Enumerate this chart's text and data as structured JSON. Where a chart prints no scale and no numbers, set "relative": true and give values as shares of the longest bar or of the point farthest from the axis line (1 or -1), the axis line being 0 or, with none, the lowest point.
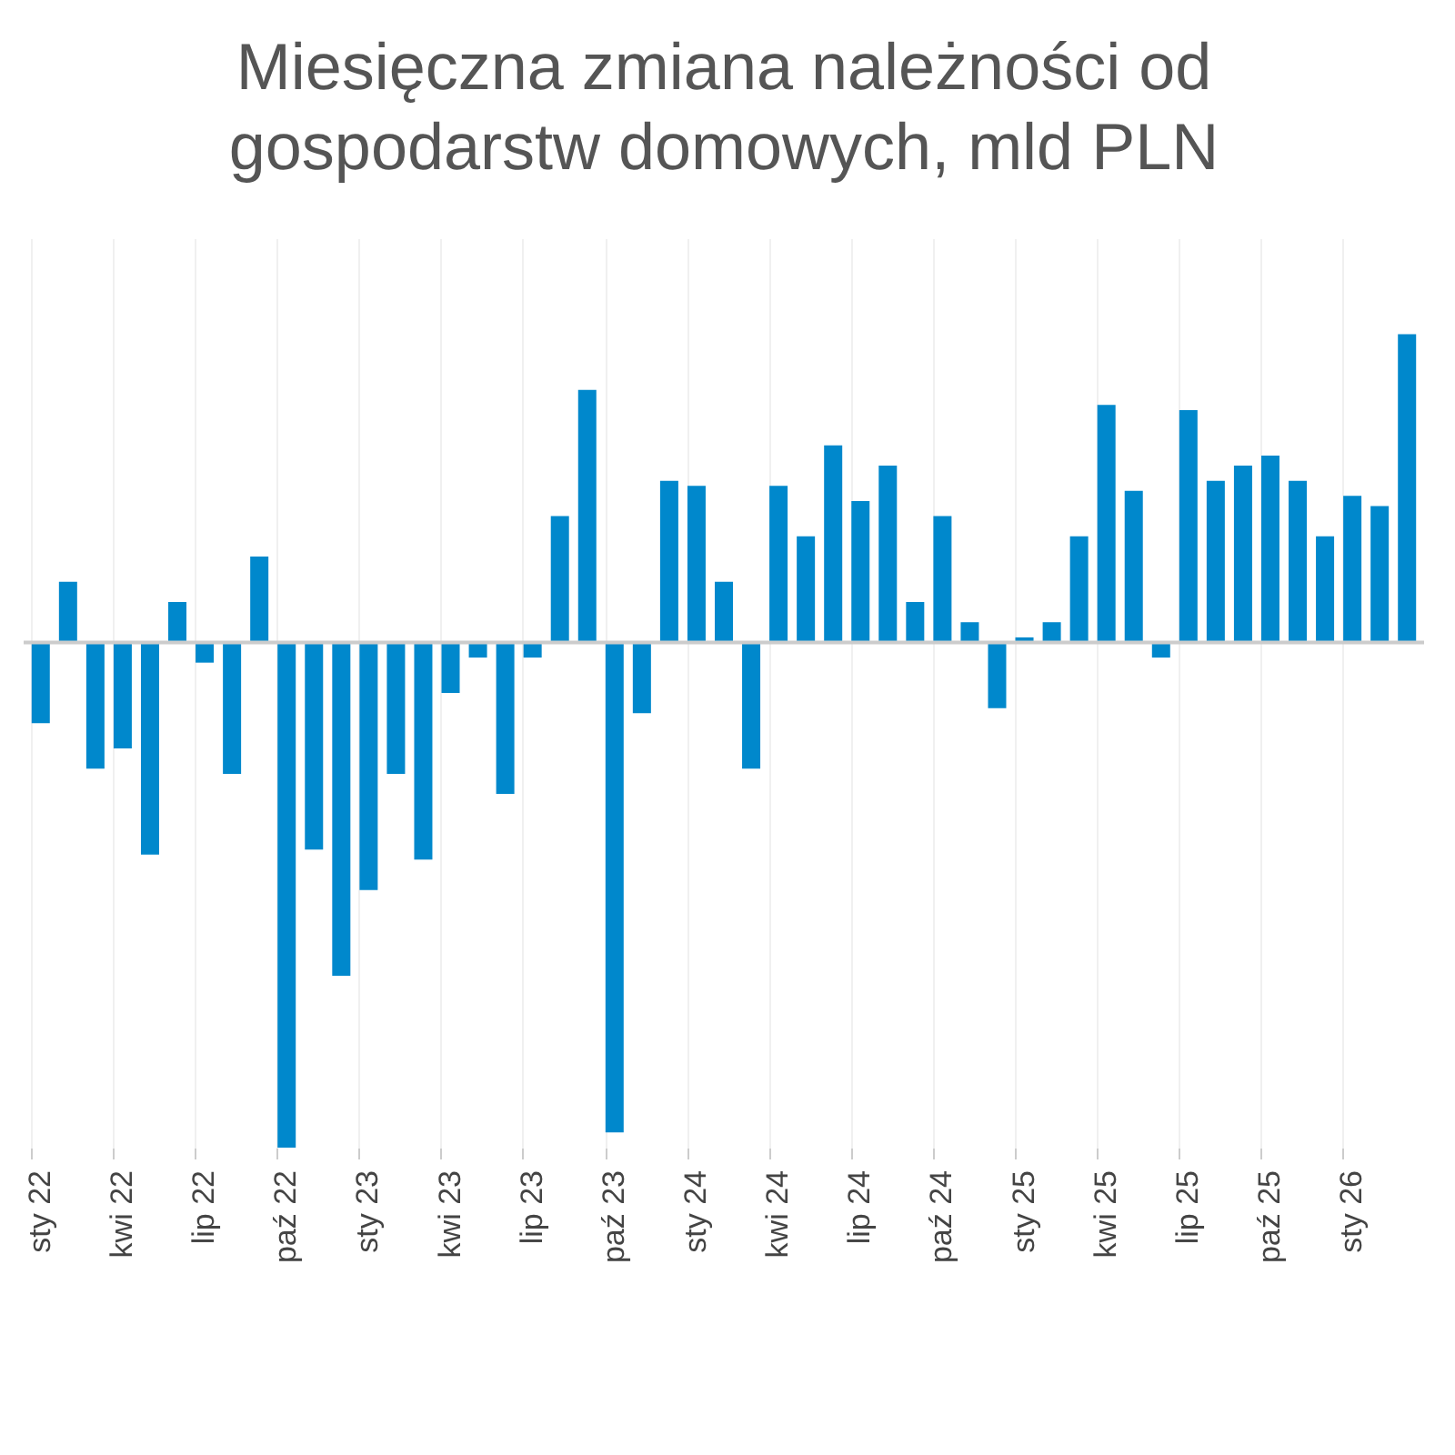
{
  "chart_data": {
    "type": "bar",
    "title": "Miesięczna zmiana należności od gospodarstw domowych, mld PLN",
    "relative": true,
    "grid": true,
    "color": "#0088cc",
    "categories": [
      "sty 22",
      null,
      null,
      "kwi 22",
      null,
      null,
      "lip 22",
      null,
      null,
      "paź 22",
      null,
      null,
      "sty 23",
      null,
      null,
      "kwi 23",
      null,
      null,
      "lip 23",
      null,
      null,
      "paź 23",
      null,
      null,
      "sty 24",
      null,
      null,
      "kwi 24",
      null,
      null,
      "lip 24",
      null,
      null,
      "paź 24",
      null,
      null,
      "sty 25",
      null,
      null,
      "kwi 25",
      null,
      null,
      "lip 25",
      null,
      null,
      "paź 25",
      null,
      null,
      "sty 26",
      null,
      null
    ],
    "values": [
      -0.16,
      0.12,
      -0.25,
      -0.21,
      -0.42,
      0.08,
      -0.04,
      -0.26,
      0.17,
      -1,
      -0.41,
      -0.66,
      -0.49,
      -0.26,
      -0.43,
      -0.1,
      -0.03,
      -0.3,
      -0.03,
      0.25,
      0.5,
      -0.97,
      -0.14,
      0.32,
      0.31,
      0.12,
      -0.25,
      0.31,
      0.21,
      0.39,
      0.28,
      0.35,
      0.08,
      0.25,
      0.04,
      -0.13,
      0.01,
      0.04,
      0.21,
      0.47,
      0.3,
      -0.03,
      0.46,
      0.32,
      0.35,
      0.37,
      0.32,
      0.21,
      0.29,
      0.27,
      0.61
    ]
  }
}
